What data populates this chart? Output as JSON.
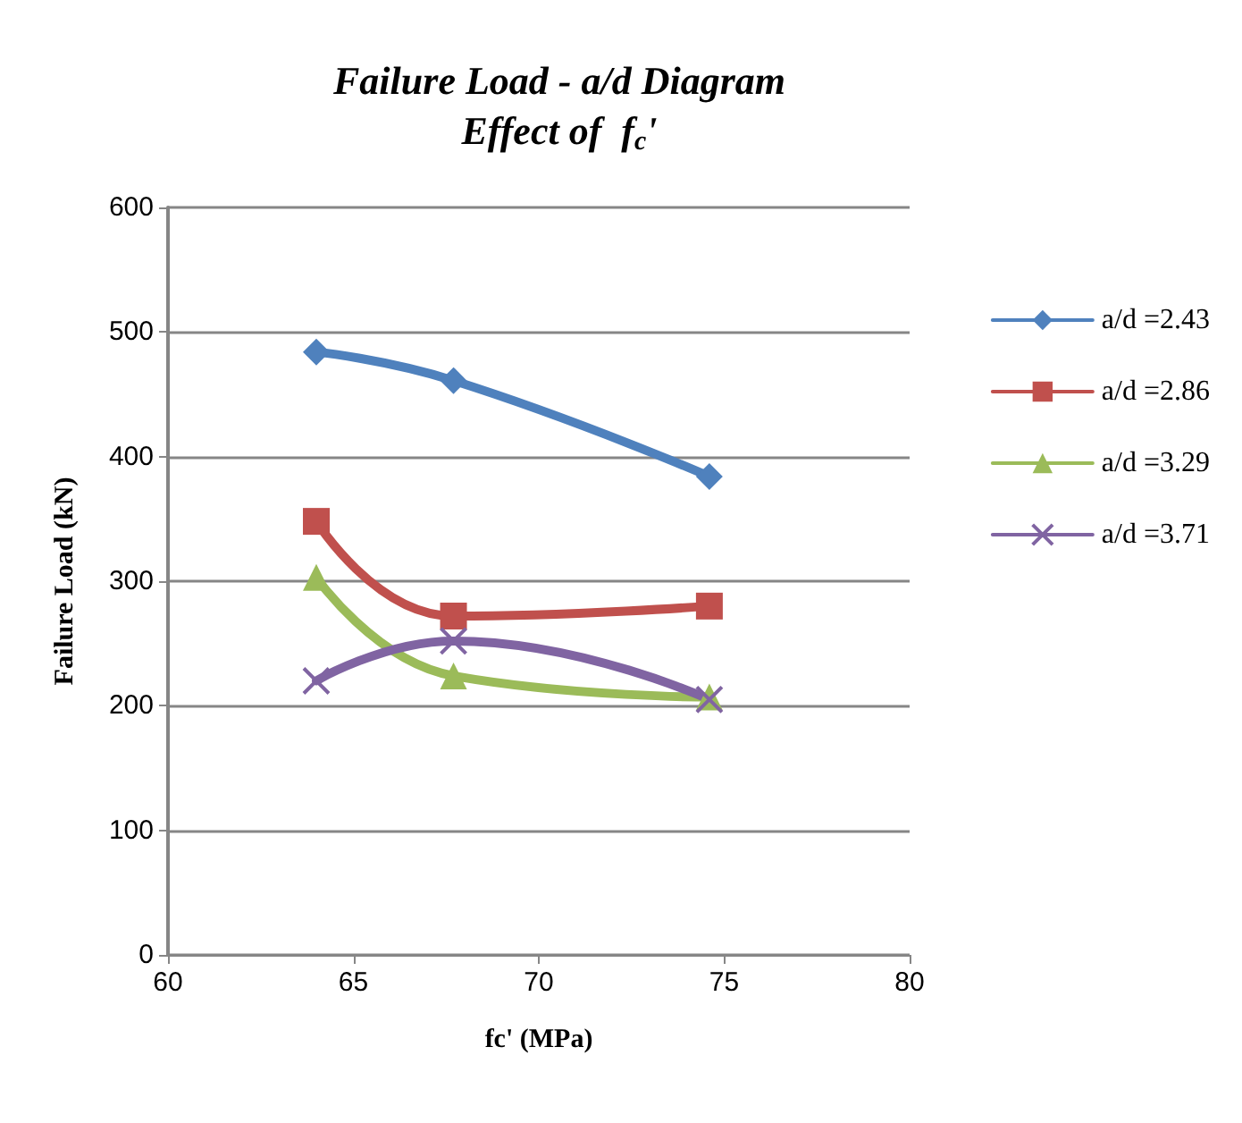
{
  "chart_data": {
    "type": "line",
    "title": "Failure Load - a/d Diagram\nEffect of  f$_{c}$'",
    "xlabel": "fc' (MPa)",
    "ylabel": "Failure Load (kN)",
    "x": [
      64,
      67.7,
      74.6
    ],
    "series": [
      {
        "name": "a/d =2.43",
        "color": "#4f81bd",
        "marker": "diamond",
        "values": [
          484,
          461,
          384
        ]
      },
      {
        "name": "a/d =2.86",
        "color": "#c0504d",
        "marker": "square",
        "values": [
          348,
          272,
          280
        ]
      },
      {
        "name": "a/d =3.29",
        "color": "#9bbb59",
        "marker": "triangle",
        "values": [
          303,
          224,
          207
        ]
      },
      {
        "name": "a/d =3.71",
        "color": "#8064a2",
        "marker": "cross",
        "values": [
          220,
          252,
          205
        ]
      }
    ],
    "xlim": [
      60,
      80
    ],
    "xticks": [
      60,
      65,
      70,
      75,
      80
    ],
    "ylim": [
      0,
      600
    ],
    "yticks": [
      0,
      100,
      200,
      300,
      400,
      500,
      600
    ],
    "grid": "y",
    "legend": "right"
  }
}
